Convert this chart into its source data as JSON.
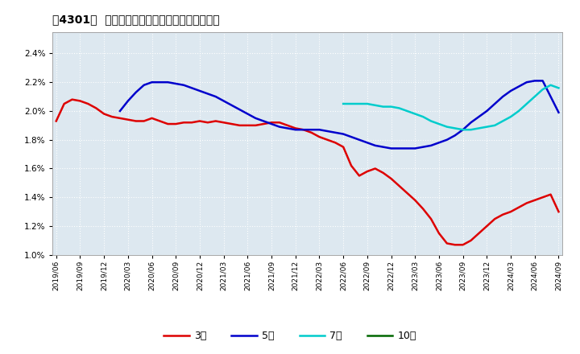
{
  "title": "[4301]  当期純利益マージンの標準偏差の推移",
  "ylim": [
    0.01,
    0.0255
  ],
  "yticks": [
    0.01,
    0.012,
    0.014,
    0.016,
    0.018,
    0.02,
    0.022,
    0.024
  ],
  "background_color": "#ffffff",
  "plot_bg_color": "#dde8f0",
  "grid_color": "#ffffff",
  "series_3": {
    "color": "#dd0000",
    "y": [
      0.0193,
      0.0205,
      0.0208,
      0.0207,
      0.0205,
      0.0202,
      0.0198,
      0.0196,
      0.0195,
      0.0194,
      0.0193,
      0.0193,
      0.0195,
      0.0193,
      0.0191,
      0.0191,
      0.0192,
      0.0192,
      0.0193,
      0.0192,
      0.0193,
      0.0192,
      0.0191,
      0.019,
      0.019,
      0.019,
      0.0191,
      0.0192,
      0.0192,
      0.019,
      0.0188,
      0.0187,
      0.0185,
      0.0182,
      0.018,
      0.0178,
      0.0175,
      0.0162,
      0.0155,
      0.0158,
      0.016,
      0.0157,
      0.0153,
      0.0148,
      0.0143,
      0.0138,
      0.0132,
      0.0125,
      0.0115,
      0.0108,
      0.0107,
      0.0107,
      0.011,
      0.0115,
      0.012,
      0.0125,
      0.0128,
      0.013,
      0.0133,
      0.0136,
      0.0138,
      0.014,
      0.0142,
      0.013
    ]
  },
  "series_5": {
    "color": "#0000cc",
    "y": [
      null,
      null,
      null,
      null,
      null,
      null,
      null,
      null,
      0.02,
      0.0207,
      0.0213,
      0.0218,
      0.022,
      0.022,
      0.022,
      0.0219,
      0.0218,
      0.0216,
      0.0214,
      0.0212,
      0.021,
      0.0207,
      0.0204,
      0.0201,
      0.0198,
      0.0195,
      0.0193,
      0.0191,
      0.0189,
      0.0188,
      0.0187,
      0.0187,
      0.0187,
      0.0187,
      0.0186,
      0.0185,
      0.0184,
      0.0182,
      0.018,
      0.0178,
      0.0176,
      0.0175,
      0.0174,
      0.0174,
      0.0174,
      0.0174,
      0.0175,
      0.0176,
      0.0178,
      0.018,
      0.0183,
      0.0187,
      0.0192,
      0.0196,
      0.02,
      0.0205,
      0.021,
      0.0214,
      0.0217,
      0.022,
      0.0221,
      0.0221,
      0.021,
      0.0199
    ]
  },
  "series_7": {
    "color": "#00cccc",
    "y": [
      null,
      null,
      null,
      null,
      null,
      null,
      null,
      null,
      null,
      null,
      null,
      null,
      null,
      null,
      null,
      null,
      null,
      null,
      null,
      null,
      null,
      null,
      null,
      null,
      null,
      null,
      null,
      null,
      null,
      null,
      null,
      null,
      null,
      null,
      null,
      null,
      0.0205,
      0.0205,
      0.0205,
      0.0205,
      0.0204,
      0.0203,
      0.0203,
      0.0202,
      0.02,
      0.0198,
      0.0196,
      0.0193,
      0.0191,
      0.0189,
      0.0188,
      0.0187,
      0.0187,
      0.0188,
      0.0189,
      0.019,
      0.0193,
      0.0196,
      0.02,
      0.0205,
      0.021,
      0.0215,
      0.0218,
      0.0216
    ]
  },
  "series_10": {
    "color": "#006600",
    "y": []
  },
  "x_tick_labels": [
    "2019/06",
    "2019/09",
    "2019/12",
    "2020/03",
    "2020/06",
    "2020/09",
    "2020/12",
    "2021/03",
    "2021/06",
    "2021/09",
    "2021/12",
    "2022/03",
    "2022/06",
    "2022/09",
    "2022/12",
    "2023/03",
    "2023/06",
    "2023/09",
    "2023/12",
    "2024/03",
    "2024/06",
    "2024/09"
  ],
  "legend_labels": [
    "3年",
    "5年",
    "7年",
    "10年"
  ],
  "legend_colors": [
    "#dd0000",
    "#0000cc",
    "#00cccc",
    "#006600"
  ],
  "title_bracket": "[4301]",
  "title_text": "当期純利益マージンの標準偏差の推移"
}
